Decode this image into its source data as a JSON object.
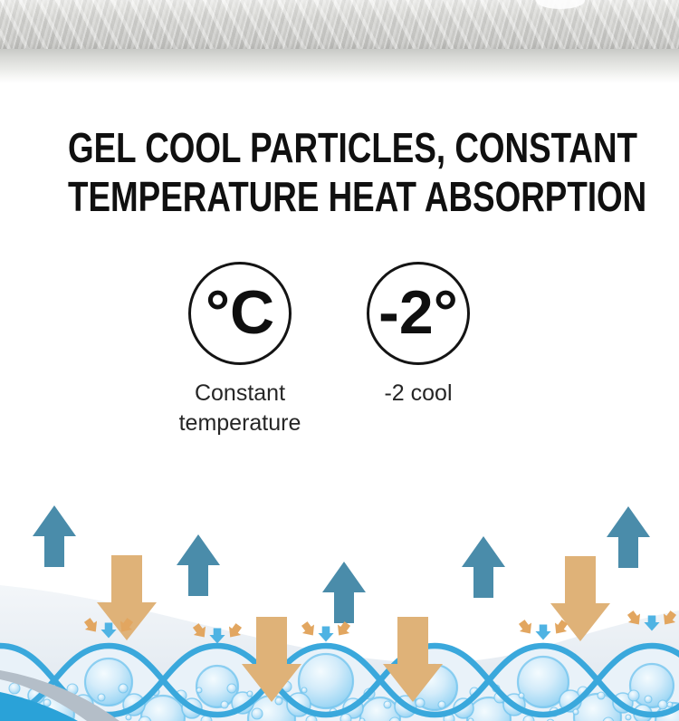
{
  "title": {
    "line1": "GEL COOL PARTICLES, CONSTANT",
    "line2": "TEMPERATURE HEAT ABSORPTION"
  },
  "features": [
    {
      "badge": "°C",
      "label": "Constant temperature"
    },
    {
      "badge": "-2°",
      "label": "-2 cool"
    }
  ],
  "icons": {
    "celsius_badge": "celsius-circle-icon",
    "minus_two_badge": "minus-two-degrees-circle-icon",
    "up_arrow": "heat-release-up-arrow-icon",
    "down_arrow": "cool-absorb-down-arrow-icon",
    "micro_arrows": "micro-absorption-arrows-icon",
    "gel_bubbles": "gel-cool-particles"
  },
  "colors": {
    "title_black": "#101010",
    "label_gray": "#262626",
    "circle_border": "#141414",
    "up_arrow_teal": "#4a8caa",
    "down_arrow_tan": "#dfb278",
    "wave_blue": "#3aa8dc",
    "micro_arrow_blue": "#4fb3e3",
    "micro_arrow_orange": "#e2a660",
    "bubble_rim_blue": "#6fc3ee",
    "surface_gray": "#e7edf3",
    "corner_band_gray": "#b4bec8",
    "corner_band_blue": "#2aa2d8"
  }
}
